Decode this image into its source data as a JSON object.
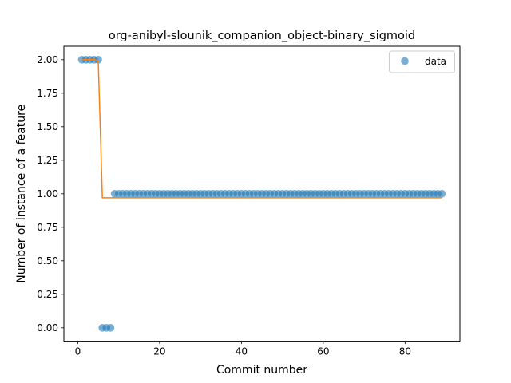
{
  "chart_data": {
    "type": "scatter",
    "title": "org-anibyl-slounik_companion_object-binary_sigmoid",
    "xlabel": "Commit number",
    "ylabel": "Number of instance of a feature",
    "xlim": [
      -3.4,
      93.4
    ],
    "ylim": [
      -0.1,
      2.1
    ],
    "xticks": [
      0,
      20,
      40,
      60,
      80
    ],
    "yticks": [
      0.0,
      0.25,
      0.5,
      0.75,
      1.0,
      1.25,
      1.5,
      1.75,
      2.0
    ],
    "ytick_labels": [
      "0.00",
      "0.25",
      "0.50",
      "0.75",
      "1.00",
      "1.25",
      "1.50",
      "1.75",
      "2.00"
    ],
    "grid": false,
    "legend": {
      "position": "top-right",
      "entries": [
        "data"
      ]
    },
    "colors": {
      "data": "#1f77b4",
      "fit": "#ff7f0e"
    },
    "series": [
      {
        "name": "data",
        "kind": "scatter",
        "x": [
          1,
          2,
          3,
          4,
          5,
          6,
          7,
          8,
          9,
          10,
          11,
          12,
          13,
          14,
          15,
          16,
          17,
          18,
          19,
          20,
          21,
          22,
          23,
          24,
          25,
          26,
          27,
          28,
          29,
          30,
          31,
          32,
          33,
          34,
          35,
          36,
          37,
          38,
          39,
          40,
          41,
          42,
          43,
          44,
          45,
          46,
          47,
          48,
          49,
          50,
          51,
          52,
          53,
          54,
          55,
          56,
          57,
          58,
          59,
          60,
          61,
          62,
          63,
          64,
          65,
          66,
          67,
          68,
          69,
          70,
          71,
          72,
          73,
          74,
          75,
          76,
          77,
          78,
          79,
          80,
          81,
          82,
          83,
          84,
          85,
          86,
          87,
          88,
          89
        ],
        "y": [
          2,
          2,
          2,
          2,
          2,
          0,
          0,
          0,
          1,
          1,
          1,
          1,
          1,
          1,
          1,
          1,
          1,
          1,
          1,
          1,
          1,
          1,
          1,
          1,
          1,
          1,
          1,
          1,
          1,
          1,
          1,
          1,
          1,
          1,
          1,
          1,
          1,
          1,
          1,
          1,
          1,
          1,
          1,
          1,
          1,
          1,
          1,
          1,
          1,
          1,
          1,
          1,
          1,
          1,
          1,
          1,
          1,
          1,
          1,
          1,
          1,
          1,
          1,
          1,
          1,
          1,
          1,
          1,
          1,
          1,
          1,
          1,
          1,
          1,
          1,
          1,
          1,
          1,
          1,
          1,
          1,
          1,
          1,
          1,
          1,
          1,
          1,
          1,
          1
        ]
      },
      {
        "kind": "line",
        "x": [
          1,
          2,
          3,
          4,
          5,
          6,
          7,
          8,
          9,
          10,
          20,
          30,
          40,
          50,
          60,
          70,
          80,
          89
        ],
        "y": [
          2.0,
          2.0,
          2.0,
          2.0,
          1.99,
          0.97,
          0.97,
          0.97,
          0.97,
          0.97,
          0.97,
          0.97,
          0.97,
          0.97,
          0.97,
          0.97,
          0.97,
          0.97
        ]
      }
    ]
  }
}
